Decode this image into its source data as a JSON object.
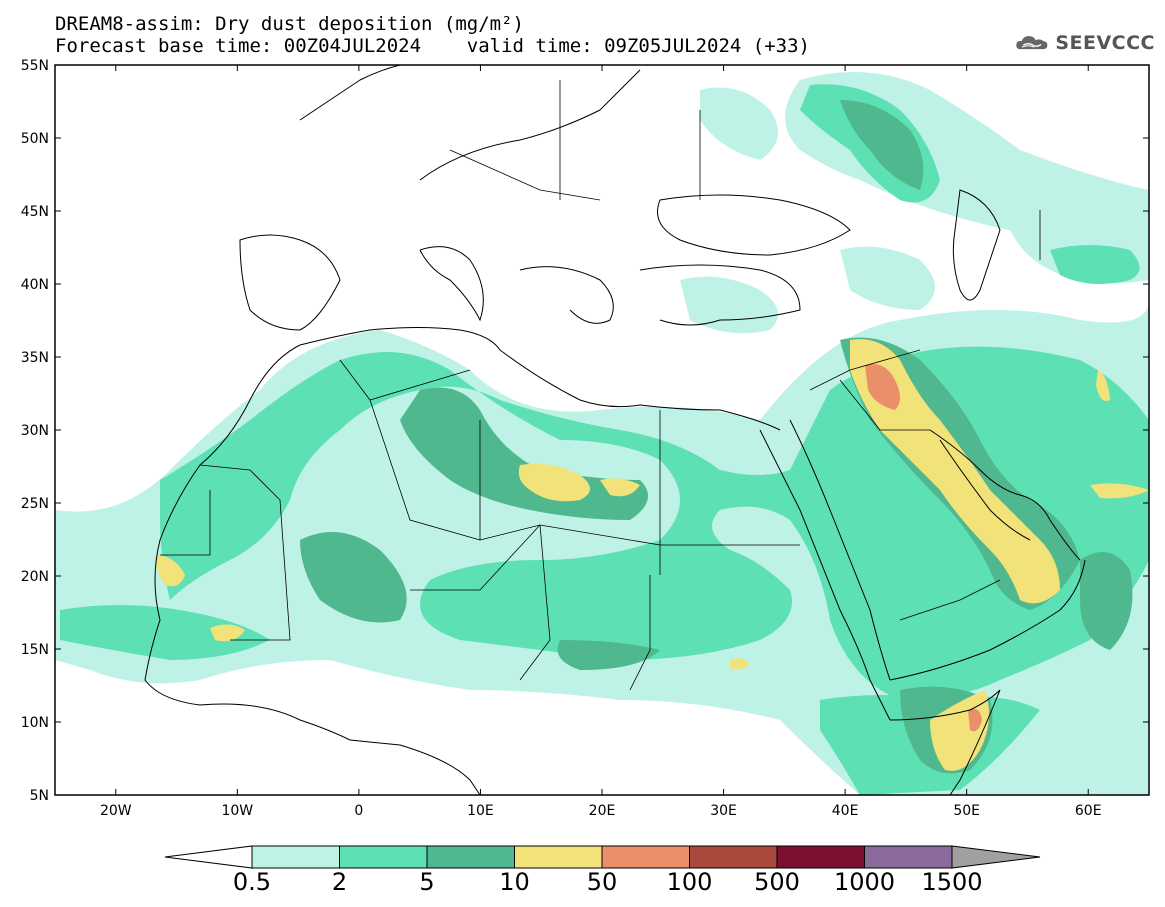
{
  "title": {
    "line1": "DREAM8-assim: Dry dust deposition (mg/m²)",
    "line2": "Forecast base time: 00Z04JUL2024    valid time: 09Z05JUL2024 (+33)"
  },
  "logo": {
    "text": "SEEVCCC",
    "icon": "cloud-icon"
  },
  "map": {
    "lon_range": [
      -25,
      65
    ],
    "lat_range": [
      5,
      55
    ],
    "lat_ticks": [
      "5N",
      "10N",
      "15N",
      "20N",
      "25N",
      "30N",
      "35N",
      "40N",
      "45N",
      "50N",
      "55N"
    ],
    "lon_ticks": [
      "20W",
      "10W",
      "0",
      "10E",
      "20E",
      "30E",
      "40E",
      "50E",
      "60E"
    ]
  },
  "colorbar": {
    "labels": [
      "0.5",
      "2",
      "5",
      "10",
      "50",
      "100",
      "500",
      "1000",
      "1500"
    ],
    "colors": [
      "#bff2e6",
      "#5de0b4",
      "#4fb88e",
      "#f2e27a",
      "#ea8f6a",
      "#a84a3b",
      "#7d1030",
      "#8b6a9e"
    ],
    "under_color": "#ffffff",
    "over_color": "#a0a0a0"
  },
  "legend_colors": {
    "level1": "#bff2e6",
    "level2": "#5de0b4",
    "level3": "#4fb88e",
    "level4": "#f2e27a",
    "level5": "#ea8f6a",
    "level6": "#a84a3b"
  }
}
